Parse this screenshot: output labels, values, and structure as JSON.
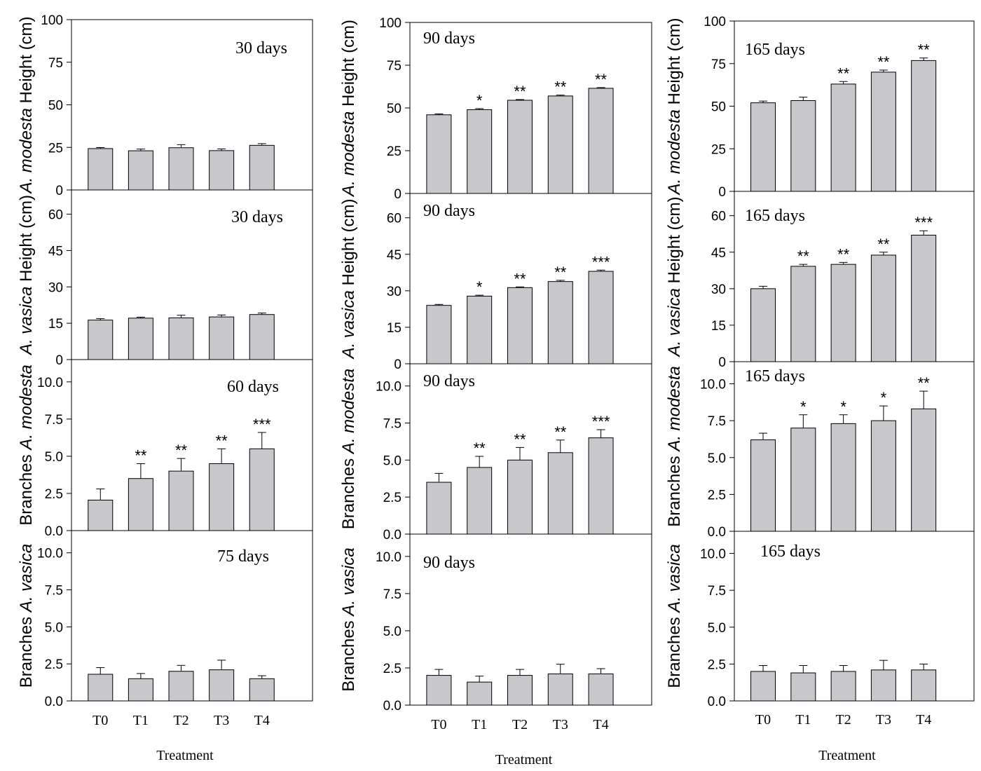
{
  "xlabel": "Treatment",
  "categories": [
    "T0",
    "T1",
    "T2",
    "T3",
    "T4"
  ],
  "colors": {
    "bar": "#c8c8cc",
    "stroke": "#000000"
  },
  "chart_data": [
    {
      "type": "bar",
      "id": "c0r0",
      "label": "30 days",
      "ylabel": "A. modesta Height (cm)",
      "ylabel_italic": "A. modesta",
      "ylabel_rest": " Height (cm)",
      "ylim": [
        0,
        100
      ],
      "ticks": [
        "0",
        "25",
        "50",
        "75",
        "100"
      ],
      "values": [
        24.3,
        23,
        24.8,
        23.1,
        26.2
      ],
      "errors": [
        0.6,
        1.0,
        1.8,
        1.0,
        1.0
      ],
      "sig": [
        "",
        "",
        "",
        "",
        ""
      ]
    },
    {
      "type": "bar",
      "id": "c0r1",
      "label": "30 days",
      "ylabel": "A. vasica Height (cm)",
      "ylabel_italic": "A. vasica",
      "ylabel_rest": " Height (cm)",
      "ylim": [
        0,
        70
      ],
      "ticks": [
        "0",
        "15",
        "30",
        "45",
        "60"
      ],
      "values": [
        16.3,
        17.1,
        17.2,
        17.6,
        18.6
      ],
      "errors": [
        0.6,
        0.4,
        1.1,
        0.8,
        0.6
      ],
      "sig": [
        "",
        "",
        "",
        "",
        ""
      ]
    },
    {
      "type": "bar",
      "id": "c0r2",
      "label": "60 days",
      "ylabel": "Branches A. modesta",
      "ylabel_italic": "A. modesta",
      "ylabel_pre": "Branches ",
      "ylim": [
        0,
        11.5
      ],
      "ticks": [
        "0.0",
        "2.5",
        "5.0",
        "7.5",
        "10.0"
      ],
      "values": [
        2.05,
        3.5,
        4.0,
        4.5,
        5.5
      ],
      "errors": [
        0.75,
        1.0,
        0.85,
        1.0,
        1.1
      ],
      "sig": [
        "",
        "**",
        "**",
        "**",
        "***"
      ]
    },
    {
      "type": "bar",
      "id": "c0r3",
      "label": "75 days",
      "ylabel": "Branches A. vasica",
      "ylabel_italic": "A. vasica",
      "ylabel_pre": "Branches ",
      "ylim": [
        0,
        11.5
      ],
      "ticks": [
        "0.0",
        "2.5",
        "5.0",
        "7.5",
        "10.0"
      ],
      "values": [
        1.8,
        1.5,
        2.0,
        2.1,
        1.5
      ],
      "errors": [
        0.45,
        0.35,
        0.4,
        0.65,
        0.2
      ],
      "sig": [
        "",
        "",
        "",
        "",
        ""
      ]
    },
    {
      "type": "bar",
      "id": "c1r0",
      "label": "90 days",
      "ylabel": "A. modesta Height (cm)",
      "ylabel_italic": "A. modesta",
      "ylabel_rest": " Height (cm)",
      "ylim": [
        0,
        100
      ],
      "ticks": [
        "0",
        "25",
        "50",
        "75",
        "100"
      ],
      "values": [
        46,
        49,
        54.5,
        57,
        61.5
      ],
      "errors": [
        0.5,
        0.6,
        0.4,
        0.5,
        0.4
      ],
      "sig": [
        "",
        "*",
        "**",
        "**",
        "**"
      ]
    },
    {
      "type": "bar",
      "id": "c1r1",
      "label": "90 days",
      "ylabel": "A. vasica Height (cm)",
      "ylabel_italic": "A. vasica",
      "ylabel_rest": " Height (cm)",
      "ylim": [
        0,
        70
      ],
      "ticks": [
        "0",
        "15",
        "30",
        "45",
        "60"
      ],
      "values": [
        24,
        27.8,
        31.3,
        33.8,
        38
      ],
      "errors": [
        0.4,
        0.4,
        0.3,
        0.5,
        0.5
      ],
      "sig": [
        "",
        "*",
        "**",
        "**",
        "***"
      ]
    },
    {
      "type": "bar",
      "id": "c1r2",
      "label": "90 days",
      "ylabel": "Branches A. modesta",
      "ylabel_italic": "A. modesta",
      "ylabel_pre": "Branches ",
      "ylim": [
        0,
        11.5
      ],
      "ticks": [
        "0.0",
        "2.5",
        "5.0",
        "7.5",
        "10.0"
      ],
      "values": [
        3.5,
        4.5,
        5.0,
        5.5,
        6.5
      ],
      "errors": [
        0.6,
        0.75,
        0.85,
        0.85,
        0.55
      ],
      "sig": [
        "",
        "**",
        "**",
        "**",
        "***"
      ]
    },
    {
      "type": "bar",
      "id": "c1r3",
      "label": "90 days",
      "ylabel": "Branches A. vasica",
      "ylabel_italic": "A. vasica",
      "ylabel_pre": "Branches ",
      "ylim": [
        0,
        11.5
      ],
      "ticks": [
        "0.0",
        "2.5",
        "5.0",
        "7.5",
        "10.0"
      ],
      "values": [
        2.0,
        1.55,
        2.0,
        2.1,
        2.1
      ],
      "errors": [
        0.4,
        0.4,
        0.4,
        0.65,
        0.35
      ],
      "sig": [
        "",
        "",
        "",
        "",
        ""
      ]
    },
    {
      "type": "bar",
      "id": "c2r0",
      "label": "165 days",
      "ylabel": "A. modesta Height (cm)",
      "ylabel_italic": "A. modesta",
      "ylabel_rest": " Height (cm)",
      "ylim": [
        0,
        100
      ],
      "ticks": [
        "0",
        "25",
        "50",
        "75",
        "100"
      ],
      "values": [
        52,
        53.3,
        63,
        70,
        76.8
      ],
      "errors": [
        1.0,
        2.0,
        1.5,
        1.2,
        1.5
      ],
      "sig": [
        "",
        "",
        "**",
        "**",
        "**"
      ]
    },
    {
      "type": "bar",
      "id": "c2r1",
      "label": "165 days",
      "ylabel": "A. vasica Height (cm)",
      "ylabel_italic": "A. vasica",
      "ylabel_rest": " Height (cm)",
      "ylim": [
        0,
        70
      ],
      "ticks": [
        "0",
        "15",
        "30",
        "45",
        "60"
      ],
      "values": [
        30,
        39.2,
        40,
        43.8,
        52
      ],
      "errors": [
        1.0,
        0.8,
        0.8,
        1.2,
        1.8
      ],
      "sig": [
        "",
        "**",
        "**",
        "**",
        "***"
      ]
    },
    {
      "type": "bar",
      "id": "c2r2",
      "label": "165 days",
      "ylabel": "Branches A. modesta",
      "ylabel_italic": "A. modesta",
      "ylabel_pre": "Branches ",
      "ylim": [
        0,
        11.5
      ],
      "ticks": [
        "0.0",
        "2.5",
        "5.0",
        "7.5",
        "10.0"
      ],
      "values": [
        6.2,
        7.0,
        7.3,
        7.5,
        8.3
      ],
      "errors": [
        0.45,
        0.9,
        0.6,
        1.0,
        1.2
      ],
      "sig": [
        "",
        "*",
        "*",
        "*",
        "**"
      ]
    },
    {
      "type": "bar",
      "id": "c2r3",
      "label": "165 days",
      "ylabel": "Branches A. vasica",
      "ylabel_italic": "A. vasica",
      "ylabel_pre": "Branches ",
      "ylim": [
        0,
        11.5
      ],
      "ticks": [
        "0.0",
        "2.5",
        "5.0",
        "7.5",
        "10.0"
      ],
      "values": [
        2.0,
        1.9,
        2.0,
        2.1,
        2.1
      ],
      "errors": [
        0.4,
        0.5,
        0.4,
        0.65,
        0.4
      ],
      "sig": [
        "",
        "",
        "",
        "",
        ""
      ]
    }
  ]
}
